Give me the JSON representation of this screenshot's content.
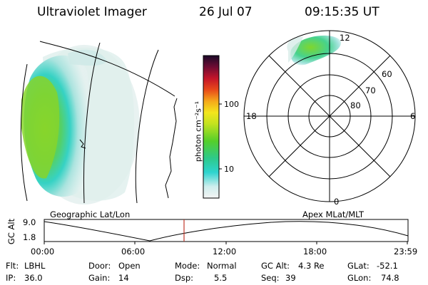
{
  "header": {
    "instrument": "Ultraviolet Imager",
    "date": "26 Jul 07",
    "time": "09:15:35 UT"
  },
  "colorbar": {
    "unit_label": "photon cm⁻²s⁻¹",
    "ticks": [
      "100",
      "10"
    ]
  },
  "polar_plot": {
    "mlt_labels": {
      "top": "12",
      "left": "18",
      "right": "6",
      "bottom": "0"
    },
    "lat_labels": [
      "60",
      "70",
      "80"
    ]
  },
  "geo_panel": {
    "label": "Geographic Lat/Lon"
  },
  "apex_panel": {
    "label": "Apex MLat/MLT"
  },
  "altitude_strip": {
    "ylabel": "GC Alt",
    "y_ticks": [
      "9.0",
      "1.8"
    ],
    "x_ticks": [
      "00:00",
      "06:00",
      "12:00",
      "18:00",
      "23:59"
    ],
    "current_time_marker_fraction": 0.386
  },
  "status": {
    "row1": {
      "filter_label": "Flt:",
      "filter_value": "LBHL",
      "door_label": "Door:",
      "door_value": "Open",
      "mode_label": "Mode:",
      "mode_value": "Normal",
      "gcalt_label": "GC Alt:",
      "gcalt_value": "4.3 Re",
      "glat_label": "GLat:",
      "glat_value": "-52.1"
    },
    "row2": {
      "ip_label": "IP:",
      "ip_value": "36.0",
      "gain_label": "Gain:",
      "gain_value": "14",
      "dsp_label": "Dsp:",
      "dsp_value": "5.5",
      "seq_label": "Seq:",
      "seq_value": "39",
      "glon_label": "GLon:",
      "glon_value": "74.8"
    }
  },
  "colors": {
    "aurora_green": "#7ed321",
    "aurora_cyan": "#3ad6c9",
    "aurora_pale": "#d4ece9",
    "time_marker": "#c0392b"
  }
}
